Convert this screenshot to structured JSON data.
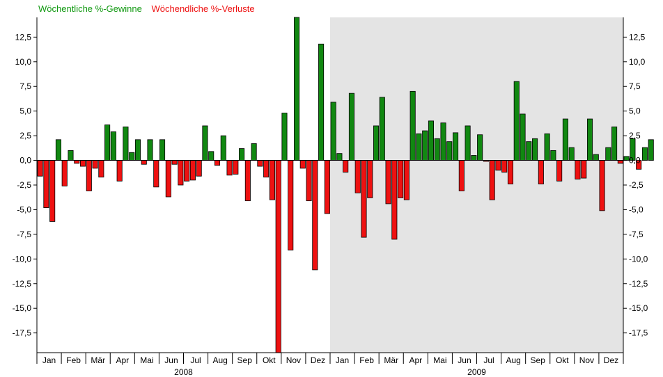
{
  "legend": {
    "gains": "Wöchentliche %-Gewinne",
    "losses": "Wöchendliche %-Verluste"
  },
  "colors": {
    "gain": "#118811",
    "loss": "#ee1111",
    "shade": "#e4e4e4",
    "gain_text": "#119911",
    "loss_text": "#ee1111"
  },
  "chart_data": {
    "type": "bar",
    "title": "",
    "xlabel": "",
    "ylabel": "",
    "ylim": [
      -19.5,
      14.5
    ],
    "yticks": [
      -17.5,
      -15.0,
      -12.5,
      -10.0,
      -7.5,
      -5.0,
      -2.5,
      0.0,
      2.5,
      5.0,
      7.5,
      10.0,
      12.5
    ],
    "ytick_labels": [
      "-17,5",
      "-15,0",
      "-12,5",
      "-10,0",
      "-7,5",
      "-5,0",
      "-2,5",
      "0,0",
      "2,5",
      "5,0",
      "7,5",
      "10,0",
      "12,5"
    ],
    "months": [
      "Jan",
      "Feb",
      "Mär",
      "Apr",
      "Mai",
      "Jun",
      "Jul",
      "Aug",
      "Sep",
      "Okt",
      "Nov",
      "Dez",
      "Jan",
      "Feb",
      "Mär",
      "Apr",
      "Mai",
      "Jun",
      "Jul",
      "Aug",
      "Sep",
      "Okt",
      "Nov",
      "Dez"
    ],
    "years": [
      {
        "label": "2008",
        "weeks": 48
      },
      {
        "label": "2009",
        "weeks": 48
      }
    ],
    "shaded_from_week": 48,
    "weekly_values": [
      -1.6,
      -4.8,
      -6.2,
      2.1,
      -2.6,
      1.0,
      -0.3,
      -0.6,
      -3.1,
      -0.8,
      -1.7,
      3.6,
      2.9,
      -2.1,
      3.4,
      0.8,
      2.1,
      -0.4,
      2.1,
      -2.7,
      2.1,
      -3.7,
      -0.4,
      -2.5,
      -2.1,
      -2.0,
      -1.6,
      3.5,
      0.9,
      -0.5,
      2.5,
      -1.5,
      -1.4,
      1.2,
      -4.1,
      1.7,
      -0.6,
      -1.7,
      -4.0,
      -19.5,
      4.8,
      -9.1,
      14.6,
      -0.8,
      -4.1,
      -11.1,
      11.8,
      -5.4,
      5.9,
      0.7,
      -1.2,
      6.8,
      -3.3,
      -7.8,
      -3.8,
      3.5,
      6.4,
      -4.4,
      -8.0,
      -3.8,
      -4.0,
      7.0,
      2.7,
      3.0,
      4.0,
      2.2,
      3.8,
      1.9,
      2.8,
      -3.1,
      3.5,
      0.5,
      2.6,
      -0.1,
      -4.0,
      -1.0,
      -1.2,
      -2.4,
      8.0,
      4.7,
      1.9,
      2.2,
      -2.4,
      2.7,
      1.0,
      -2.1,
      4.2,
      1.3,
      -1.9,
      -1.8,
      4.2,
      0.6,
      -5.1,
      1.3,
      3.4,
      -0.3,
      0.4,
      2.2,
      -0.9,
      1.3,
      2.1
    ]
  }
}
